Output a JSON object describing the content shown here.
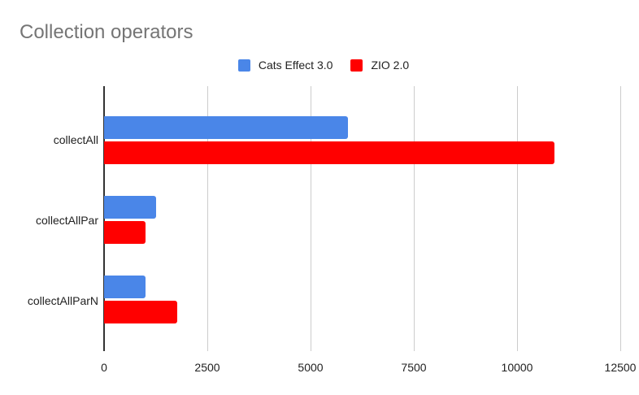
{
  "chart_data": {
    "type": "bar",
    "orientation": "horizontal",
    "title": "Collection operators",
    "xlabel": "",
    "ylabel": "",
    "categories": [
      "collectAll",
      "collectAllPar",
      "collectAllParN"
    ],
    "series": [
      {
        "name": "Cats Effect 3.0",
        "color": "#4a86e8",
        "values": [
          5900,
          1260,
          1000
        ]
      },
      {
        "name": "ZIO 2.0",
        "color": "#ff0000",
        "values": [
          10900,
          1000,
          1770
        ]
      }
    ],
    "xlim": [
      0,
      12500
    ],
    "x_ticks": [
      "0",
      "2500",
      "5000",
      "7500",
      "10000",
      "12500"
    ],
    "grid": true,
    "legend_position": "top"
  }
}
